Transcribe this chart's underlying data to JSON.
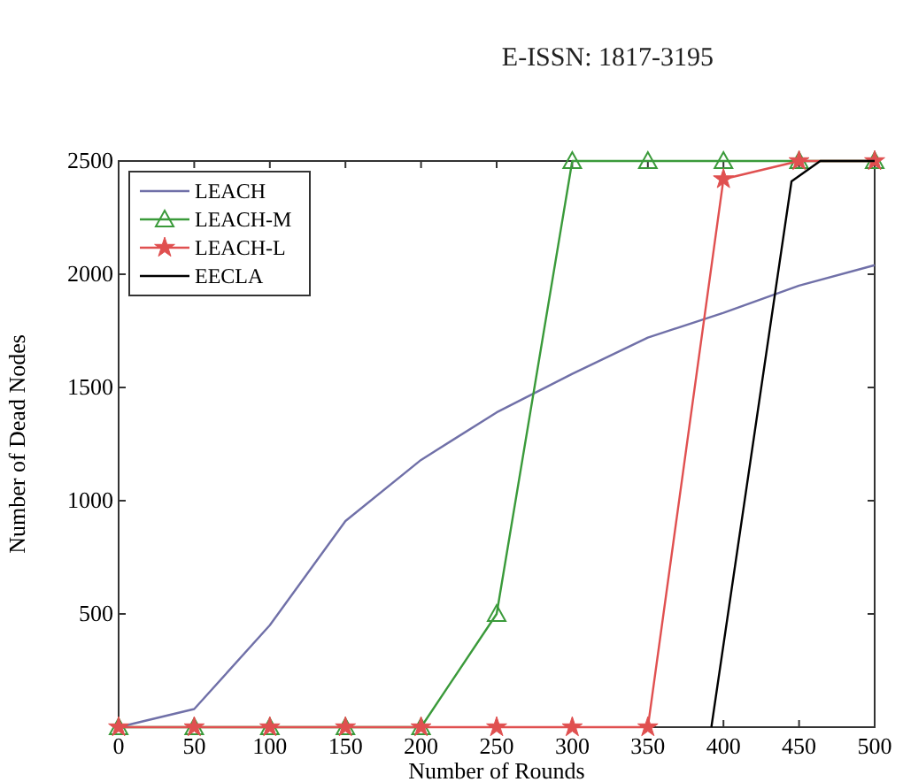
{
  "chart_data": {
    "type": "line",
    "xlabel": "Number of Rounds",
    "ylabel": "Number of Dead Nodes",
    "annotations": [
      "E-ISSN: 1817-3195"
    ],
    "xlim": [
      0,
      500
    ],
    "xticks": [
      0,
      50,
      100,
      150,
      200,
      250,
      300,
      350,
      400,
      450,
      500
    ],
    "ylim": [
      0,
      2500
    ],
    "yticks": [
      {
        "value": 0,
        "label": null
      },
      500,
      1000,
      1500,
      2000,
      2500
    ],
    "grid": false,
    "legend": "top left",
    "series": [
      {
        "name": "LEACH",
        "color": "#7070a8",
        "marker": "none",
        "x": [
          0,
          50,
          100,
          150,
          200,
          250,
          300,
          350,
          400,
          450,
          500
        ],
        "values": [
          0,
          80,
          450,
          910,
          1180,
          1390,
          1560,
          1720,
          1830,
          1950,
          2040
        ]
      },
      {
        "name": "LEACH-M",
        "color": "#3a9a3a",
        "marker": "triangle",
        "x": [
          0,
          50,
          100,
          150,
          200,
          250,
          300,
          350,
          400,
          450,
          500
        ],
        "values": [
          0,
          0,
          0,
          0,
          0,
          500,
          2500,
          2500,
          2500,
          2500,
          2500
        ]
      },
      {
        "name": "LEACH-L",
        "color": "#e05050",
        "marker": "star",
        "x": [
          0,
          50,
          100,
          150,
          200,
          250,
          300,
          350,
          400,
          450,
          500
        ],
        "values": [
          0,
          0,
          0,
          0,
          0,
          0,
          0,
          0,
          2420,
          2500,
          2500
        ]
      },
      {
        "name": "EECLA",
        "color": "#000000",
        "marker": "none",
        "x": [
          392,
          445,
          464,
          500
        ],
        "values": [
          0,
          2410,
          2500,
          2500
        ]
      }
    ]
  }
}
